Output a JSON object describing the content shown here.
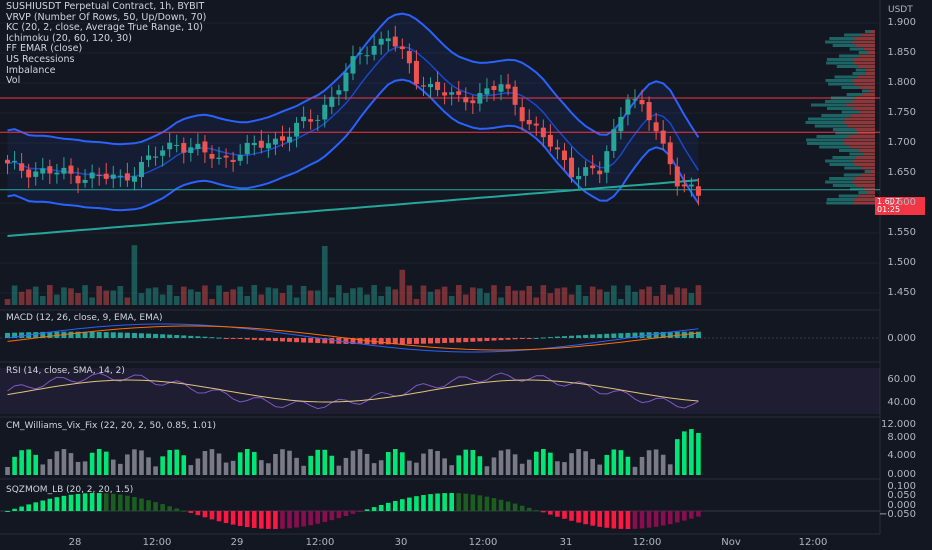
{
  "chart_data": {
    "type": "candlestick",
    "symbol_line": "SUSHIUSDT Perpetual Contract, 1h, BYBIT",
    "currency": "USDT",
    "indicators_legend": [
      "VRVP (Number Of Rows, 50, Up/Down, 70)",
      "KC (20, 2, close, Average True Range, 10)",
      "Ichimoku (20, 60, 120, 30)",
      "FF EMAR (close)",
      "US Recessions",
      "Imbalance",
      "Vol"
    ],
    "price_axis_ticks": [
      "1.900",
      "1.850",
      "1.800",
      "1.750",
      "1.700",
      "1.650",
      "1.600",
      "1.550",
      "1.500",
      "1.450"
    ],
    "price_ylim": [
      1.43,
      1.905
    ],
    "last_price_tag": [
      "1.607",
      "01:25"
    ],
    "time_labels": [
      "28",
      "12:00",
      "29",
      "12:00",
      "30",
      "12:00",
      "31",
      "12:00",
      "Nov",
      "12:00"
    ],
    "candles": {
      "count": 99,
      "x_start": "2024-10-27 20:00",
      "interval": "1h",
      "key_points": [
        {
          "i": 0,
          "close": 1.66
        },
        {
          "i": 8,
          "close": 1.648
        },
        {
          "i": 16,
          "close": 1.64
        },
        {
          "i": 24,
          "close": 1.702
        },
        {
          "i": 30,
          "close": 1.672
        },
        {
          "i": 38,
          "close": 1.705
        },
        {
          "i": 44,
          "close": 1.745
        },
        {
          "i": 50,
          "close": 1.848
        },
        {
          "i": 54,
          "close": 1.88
        },
        {
          "i": 58,
          "close": 1.808
        },
        {
          "i": 64,
          "close": 1.77
        },
        {
          "i": 70,
          "close": 1.795
        },
        {
          "i": 74,
          "close": 1.735
        },
        {
          "i": 80,
          "close": 1.655
        },
        {
          "i": 84,
          "close": 1.65
        },
        {
          "i": 88,
          "close": 1.785
        },
        {
          "i": 92,
          "close": 1.722
        },
        {
          "i": 95,
          "close": 1.64
        },
        {
          "i": 98,
          "close": 1.607
        }
      ]
    },
    "levels": [
      {
        "price": 1.775,
        "color": "#f23645"
      },
      {
        "price": 1.718,
        "color": "#f23645"
      },
      {
        "price": 1.622,
        "color": "#26a69a"
      }
    ],
    "panes": [
      {
        "name": "macd",
        "label": "MACD (12, 26, close, 9, EMA, EMA)",
        "ticks": [
          "0.000"
        ]
      },
      {
        "name": "rsi",
        "label": "RSI (14, close, SMA, 14, 2)",
        "ticks": [
          "60.00",
          "40.00"
        ],
        "band": [
          30,
          70
        ]
      },
      {
        "name": "vix",
        "label": "CM_Williams_Vix_Fix (22, 20, 2, 50, 0.85, 1.01)",
        "ticks": [
          "12.000",
          "8.000",
          "4.000",
          "0.000"
        ]
      },
      {
        "name": "sqz",
        "label": "SQZMOM_LB (20, 2, 20, 1.5)",
        "ticks": [
          "0.100",
          "0.050",
          "0.000",
          "−0.050"
        ]
      }
    ],
    "colors": {
      "up": "#26a69a",
      "down": "#ef5350",
      "background": "#131722",
      "keltner": "#2962ff",
      "ema_long": "#26a69a",
      "vix_high": "#00e676",
      "vix_low": "#787b86",
      "sqz_up_strong": "#00e676",
      "sqz_up_weak": "#1b5e20",
      "sqz_down_strong": "#ff1744",
      "sqz_down_weak": "#880e4f"
    }
  }
}
